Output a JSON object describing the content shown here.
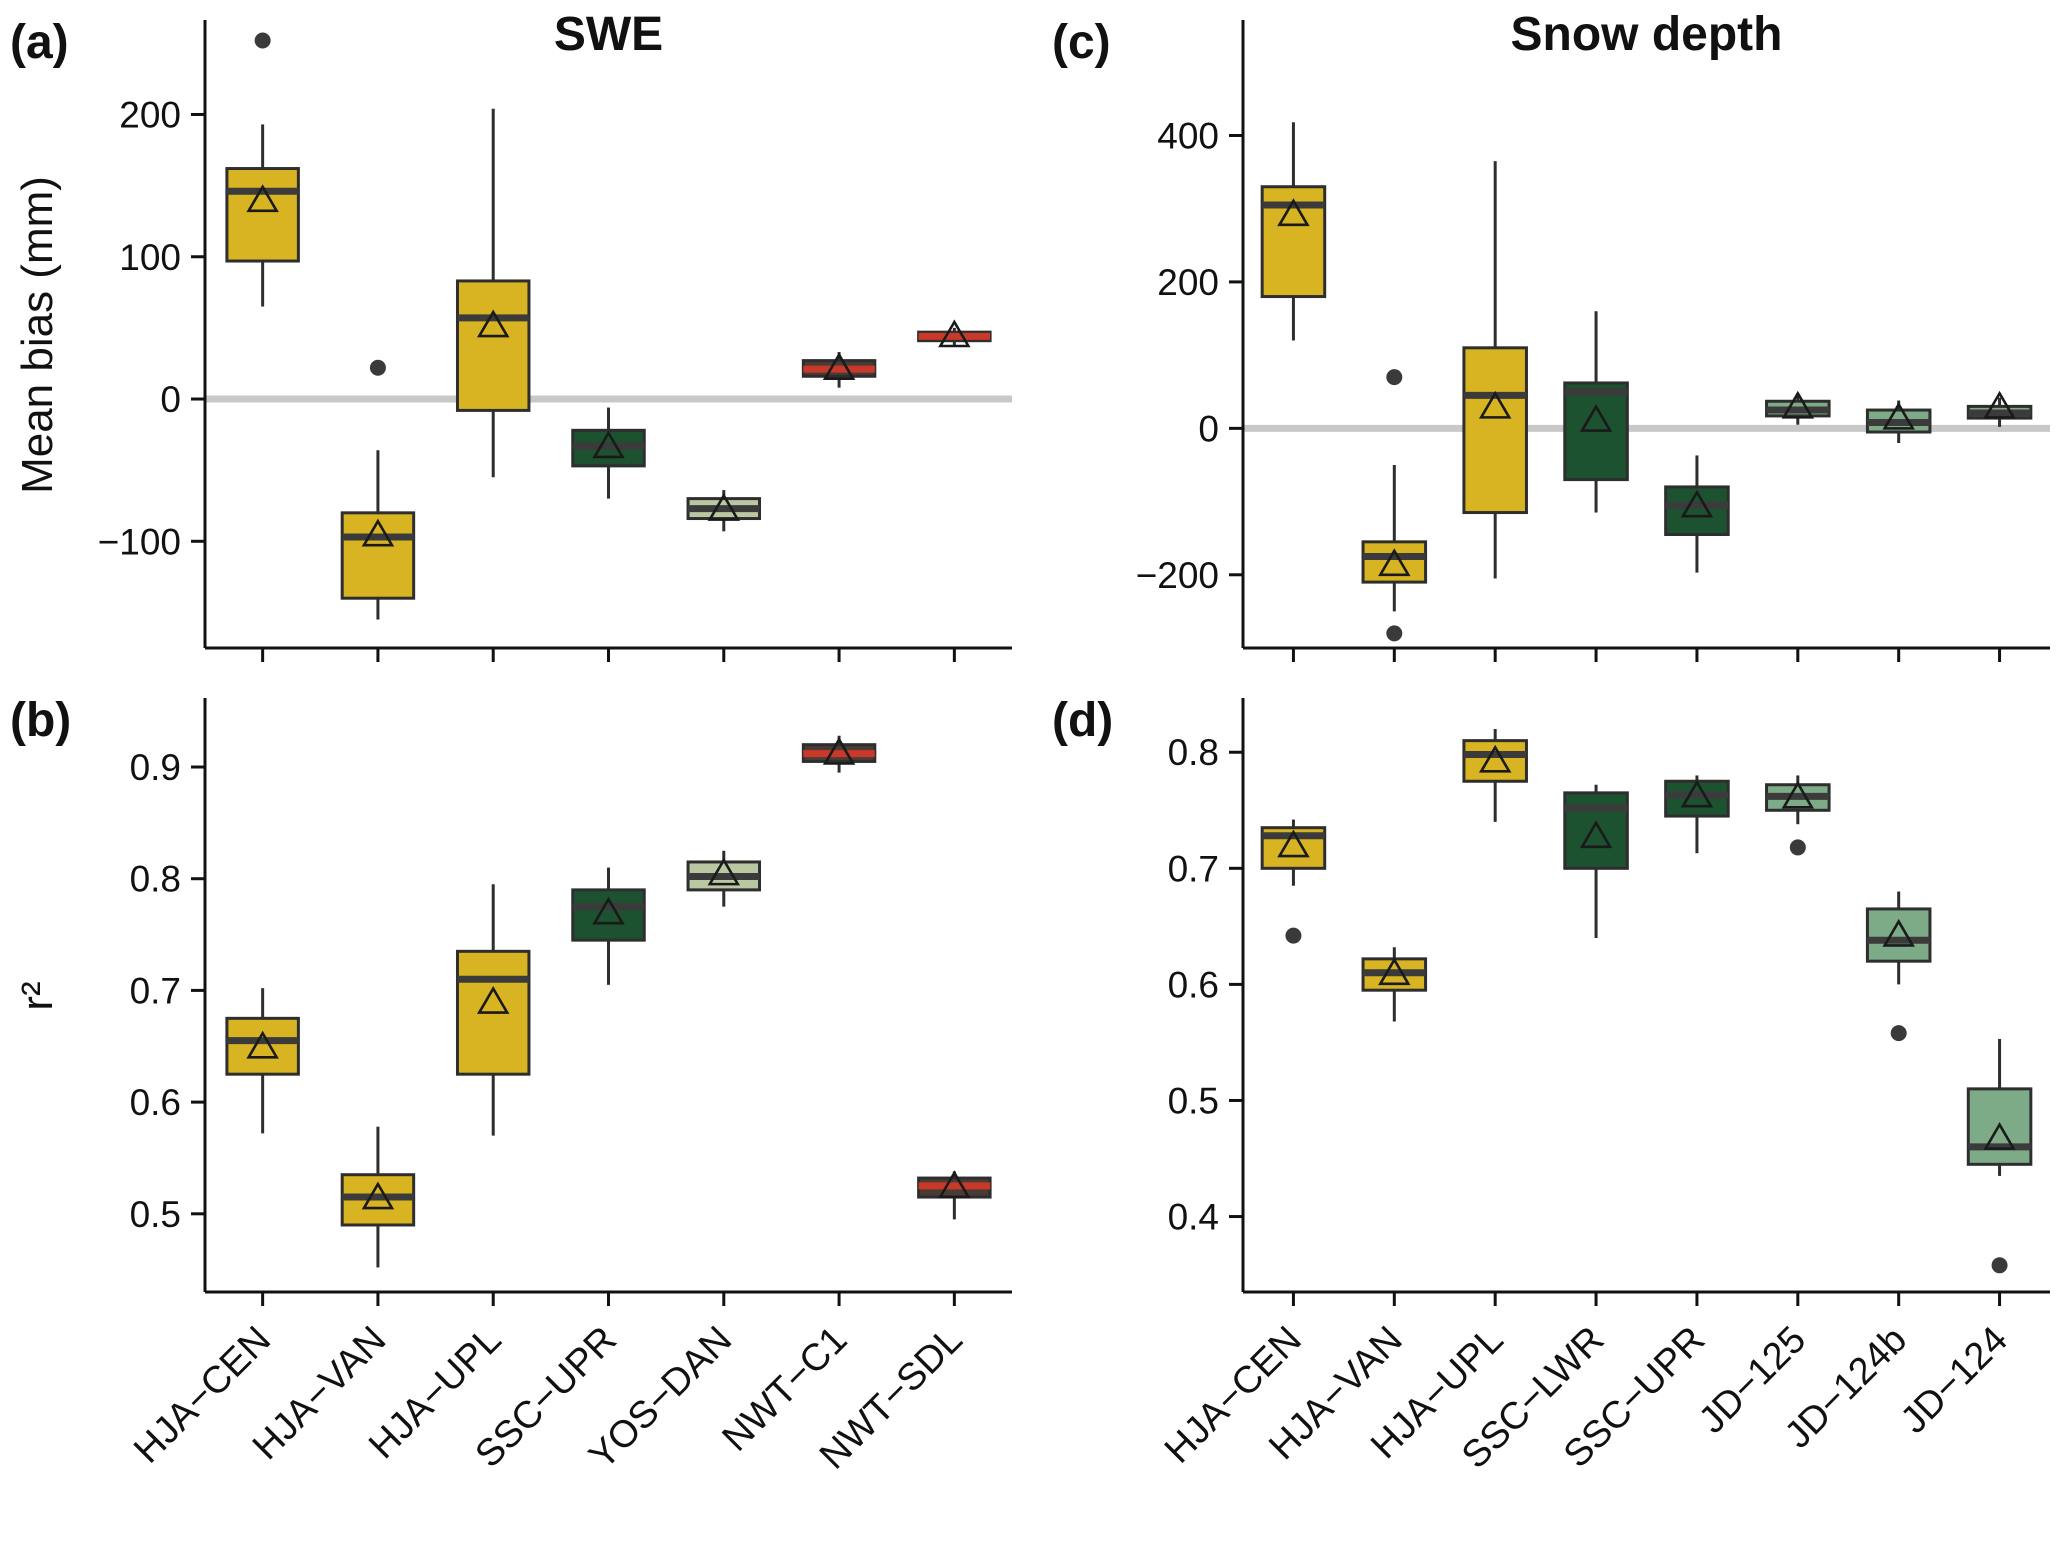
{
  "figure": {
    "left_column_title": "SWE",
    "right_column_title": "Snow depth",
    "bias_ylabel": "Mean bias (mm)",
    "r2_ylabel": "r²"
  },
  "colors": {
    "hja_yellow": "#d8b422",
    "ssc_darkgreen": "#1d5231",
    "yos_palegreen": "#b9c8a3",
    "jd_green": "#7dab87",
    "nwt_dark": "#4a3b35",
    "nwt_median_red": "#c9392a",
    "median_default": "#3b3b3b",
    "box_border": "#2e2e2e",
    "zero_line": "#c8c8c8",
    "axis": "#111111",
    "outlier": "#3a3a3a"
  },
  "chart_data": {
    "type": "boxplot-grid",
    "panels": [
      {
        "id": "a",
        "letter": "(a)",
        "col": 0,
        "row": 0,
        "title": "SWE",
        "ylabel": "Mean bias (mm)",
        "ylim": [
          -175,
          265
        ],
        "yticks": [
          {
            "v": -100,
            "label": "−100"
          },
          {
            "v": 0,
            "label": "0"
          },
          {
            "v": 100,
            "label": "100"
          },
          {
            "v": 200,
            "label": "200"
          }
        ],
        "zero_line": true,
        "show_x_labels": false,
        "boxes": [
          {
            "category": "HJA−CEN",
            "fill": "#d8b422",
            "lo": 65,
            "q1": 97,
            "median": 146,
            "q3": 162,
            "hi": 193,
            "mean": 140,
            "outliers": [
              252
            ]
          },
          {
            "category": "HJA−VAN",
            "fill": "#d8b422",
            "lo": -155,
            "q1": -140,
            "median": -97,
            "q3": -80,
            "hi": -36,
            "mean": -95,
            "outliers": [
              22
            ]
          },
          {
            "category": "HJA−UPL",
            "fill": "#d8b422",
            "lo": -55,
            "q1": -8,
            "median": 57,
            "q3": 83,
            "hi": 204,
            "mean": 52,
            "outliers": []
          },
          {
            "category": "SSC−UPR",
            "fill": "#1d5231",
            "lo": -70,
            "q1": -47,
            "median": -33,
            "q3": -22,
            "hi": -6,
            "mean": -33,
            "outliers": []
          },
          {
            "category": "YOS−DAN",
            "fill": "#b9c8a3",
            "lo": -93,
            "q1": -84,
            "median": -77,
            "q3": -70,
            "hi": -64,
            "mean": -77,
            "outliers": []
          },
          {
            "category": "NWT−C1",
            "fill": "#4a3b35",
            "lo": 8,
            "q1": 16,
            "median": 21,
            "q3": 27,
            "hi": 33,
            "mean": 22,
            "outliers": [],
            "median_color": "#c9392a"
          },
          {
            "category": "NWT−SDL",
            "fill": "#4a3b35",
            "lo": 38,
            "q1": 41,
            "median": 44,
            "q3": 47,
            "hi": 50,
            "mean": 45,
            "outliers": [],
            "median_color": "#c9392a"
          }
        ]
      },
      {
        "id": "b",
        "letter": "(b)",
        "col": 0,
        "row": 1,
        "title": "",
        "ylabel": "r²",
        "ylim": [
          0.43,
          0.96
        ],
        "yticks": [
          {
            "v": 0.5,
            "label": "0.5"
          },
          {
            "v": 0.6,
            "label": "0.6"
          },
          {
            "v": 0.7,
            "label": "0.7"
          },
          {
            "v": 0.8,
            "label": "0.8"
          },
          {
            "v": 0.9,
            "label": "0.9"
          }
        ],
        "zero_line": false,
        "show_x_labels": true,
        "boxes": [
          {
            "category": "HJA−CEN",
            "fill": "#d8b422",
            "lo": 0.572,
            "q1": 0.625,
            "median": 0.655,
            "q3": 0.675,
            "hi": 0.702,
            "mean": 0.65,
            "outliers": []
          },
          {
            "category": "HJA−VAN",
            "fill": "#d8b422",
            "lo": 0.452,
            "q1": 0.49,
            "median": 0.515,
            "q3": 0.535,
            "hi": 0.578,
            "mean": 0.515,
            "outliers": []
          },
          {
            "category": "HJA−UPL",
            "fill": "#d8b422",
            "lo": 0.57,
            "q1": 0.625,
            "median": 0.71,
            "q3": 0.735,
            "hi": 0.795,
            "mean": 0.69,
            "outliers": []
          },
          {
            "category": "SSC−UPR",
            "fill": "#1d5231",
            "lo": 0.705,
            "q1": 0.745,
            "median": 0.775,
            "q3": 0.79,
            "hi": 0.81,
            "mean": 0.77,
            "outliers": []
          },
          {
            "category": "YOS−DAN",
            "fill": "#b9c8a3",
            "lo": 0.775,
            "q1": 0.79,
            "median": 0.802,
            "q3": 0.815,
            "hi": 0.825,
            "mean": 0.805,
            "outliers": []
          },
          {
            "category": "NWT−C1",
            "fill": "#4a3b35",
            "lo": 0.895,
            "q1": 0.905,
            "median": 0.912,
            "q3": 0.92,
            "hi": 0.928,
            "mean": 0.913,
            "outliers": [],
            "median_color": "#c9392a"
          },
          {
            "category": "NWT−SDL",
            "fill": "#4a3b35",
            "lo": 0.495,
            "q1": 0.515,
            "median": 0.525,
            "q3": 0.532,
            "hi": 0.538,
            "mean": 0.525,
            "outliers": [],
            "median_color": "#c9392a"
          }
        ]
      },
      {
        "id": "c",
        "letter": "(c)",
        "col": 1,
        "row": 0,
        "title": "Snow depth",
        "ylabel": "",
        "ylim": [
          -300,
          555
        ],
        "yticks": [
          {
            "v": -200,
            "label": "−200"
          },
          {
            "v": 0,
            "label": "0"
          },
          {
            "v": 200,
            "label": "200"
          },
          {
            "v": 400,
            "label": "400"
          }
        ],
        "zero_line": true,
        "show_x_labels": false,
        "boxes": [
          {
            "category": "HJA−CEN",
            "fill": "#d8b422",
            "lo": 120,
            "q1": 180,
            "median": 305,
            "q3": 330,
            "hi": 418,
            "mean": 293,
            "outliers": []
          },
          {
            "category": "HJA−VAN",
            "fill": "#d8b422",
            "lo": -250,
            "q1": -210,
            "median": -175,
            "q3": -155,
            "hi": -50,
            "mean": -185,
            "outliers": [
              70,
              -280
            ]
          },
          {
            "category": "HJA−UPL",
            "fill": "#d8b422",
            "lo": -205,
            "q1": -115,
            "median": 45,
            "q3": 110,
            "hi": 365,
            "mean": 30,
            "outliers": []
          },
          {
            "category": "SSC−LWR",
            "fill": "#1d5231",
            "lo": -115,
            "q1": -70,
            "median": 50,
            "q3": 62,
            "hi": 160,
            "mean": 12,
            "outliers": []
          },
          {
            "category": "SSC−UPR",
            "fill": "#1d5231",
            "lo": -197,
            "q1": -145,
            "median": -105,
            "q3": -80,
            "hi": -37,
            "mean": -105,
            "outliers": []
          },
          {
            "category": "JD−125",
            "fill": "#7dab87",
            "lo": 5,
            "q1": 17,
            "median": 25,
            "q3": 37,
            "hi": 48,
            "mean": 30,
            "outliers": []
          },
          {
            "category": "JD−124b",
            "fill": "#7dab87",
            "lo": -20,
            "q1": -5,
            "median": 8,
            "q3": 25,
            "hi": 38,
            "mean": 15,
            "outliers": []
          },
          {
            "category": "JD−124",
            "fill": "#7dab87",
            "lo": 2,
            "q1": 14,
            "median": 21,
            "q3": 30,
            "hi": 42,
            "mean": 30,
            "outliers": []
          }
        ]
      },
      {
        "id": "d",
        "letter": "(d)",
        "col": 1,
        "row": 1,
        "title": "",
        "ylabel": "",
        "ylim": [
          0.335,
          0.845
        ],
        "yticks": [
          {
            "v": 0.4,
            "label": "0.4"
          },
          {
            "v": 0.5,
            "label": "0.5"
          },
          {
            "v": 0.6,
            "label": "0.6"
          },
          {
            "v": 0.7,
            "label": "0.7"
          },
          {
            "v": 0.8,
            "label": "0.8"
          }
        ],
        "zero_line": false,
        "show_x_labels": true,
        "boxes": [
          {
            "category": "HJA−CEN",
            "fill": "#d8b422",
            "lo": 0.685,
            "q1": 0.7,
            "median": 0.728,
            "q3": 0.735,
            "hi": 0.742,
            "mean": 0.72,
            "outliers": [
              0.642
            ]
          },
          {
            "category": "HJA−VAN",
            "fill": "#d8b422",
            "lo": 0.568,
            "q1": 0.595,
            "median": 0.61,
            "q3": 0.622,
            "hi": 0.632,
            "mean": 0.61,
            "outliers": []
          },
          {
            "category": "HJA−UPL",
            "fill": "#d8b422",
            "lo": 0.74,
            "q1": 0.775,
            "median": 0.798,
            "q3": 0.81,
            "hi": 0.82,
            "mean": 0.793,
            "outliers": []
          },
          {
            "category": "SSC−LWR",
            "fill": "#1d5231",
            "lo": 0.64,
            "q1": 0.7,
            "median": 0.752,
            "q3": 0.765,
            "hi": 0.772,
            "mean": 0.728,
            "outliers": []
          },
          {
            "category": "SSC−UPR",
            "fill": "#1d5231",
            "lo": 0.713,
            "q1": 0.745,
            "median": 0.763,
            "q3": 0.775,
            "hi": 0.78,
            "mean": 0.763,
            "outliers": []
          },
          {
            "category": "JD−125",
            "fill": "#7dab87",
            "lo": 0.738,
            "q1": 0.75,
            "median": 0.762,
            "q3": 0.772,
            "hi": 0.78,
            "mean": 0.762,
            "outliers": [
              0.718
            ]
          },
          {
            "category": "JD−124b",
            "fill": "#7dab87",
            "lo": 0.6,
            "q1": 0.62,
            "median": 0.638,
            "q3": 0.665,
            "hi": 0.68,
            "mean": 0.643,
            "outliers": [
              0.558
            ]
          },
          {
            "category": "JD−124",
            "fill": "#7dab87",
            "lo": 0.435,
            "q1": 0.445,
            "median": 0.46,
            "q3": 0.51,
            "hi": 0.553,
            "mean": 0.468,
            "outliers": [
              0.358
            ]
          }
        ]
      }
    ]
  }
}
